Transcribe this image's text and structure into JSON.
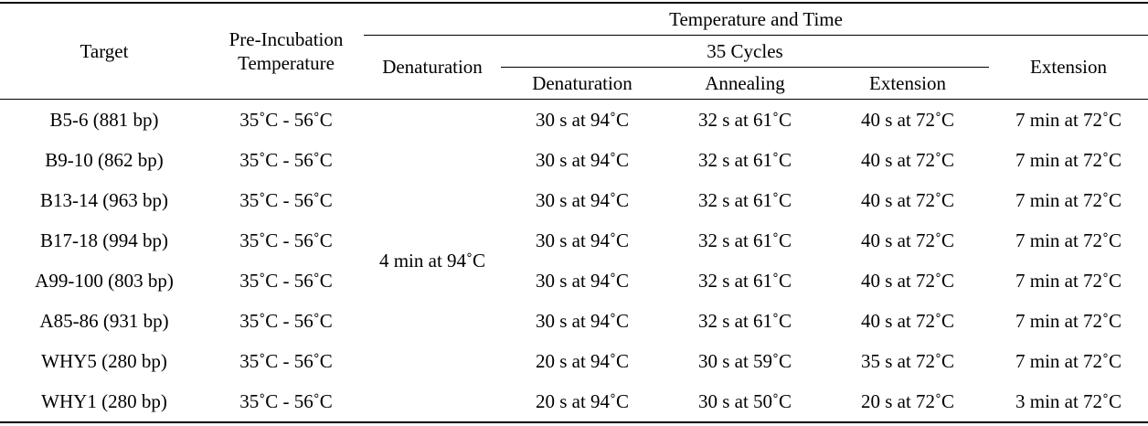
{
  "table": {
    "headers": {
      "target": "Target",
      "pre_incubation": "Pre-Incubation Temperature",
      "temperature_and_time": "Temperature and Time",
      "denaturation_initial": "Denaturation",
      "cycles": "35 Cycles",
      "cycle_denaturation": "Denaturation",
      "cycle_annealing": "Annealing",
      "cycle_extension": "Extension",
      "final_extension": "Extension"
    },
    "initial_denaturation_value": "4 min at 94˚C",
    "rows": [
      {
        "target": "B5-6 (881 bp)",
        "pre": "35˚C - 56˚C",
        "den": "30 s at 94˚C",
        "ann": "32 s at 61˚C",
        "ext": "40 s at 72˚C",
        "final": "7 min at 72˚C"
      },
      {
        "target": "B9-10 (862 bp)",
        "pre": "35˚C - 56˚C",
        "den": "30 s at 94˚C",
        "ann": "32 s at 61˚C",
        "ext": "40 s at 72˚C",
        "final": "7 min at 72˚C"
      },
      {
        "target": "B13-14 (963 bp)",
        "pre": "35˚C - 56˚C",
        "den": "30 s at 94˚C",
        "ann": "32 s at 61˚C",
        "ext": "40 s at 72˚C",
        "final": "7 min at 72˚C"
      },
      {
        "target": "B17-18 (994 bp)",
        "pre": "35˚C - 56˚C",
        "den": "30 s at 94˚C",
        "ann": "32 s at 61˚C",
        "ext": "40 s at 72˚C",
        "final": "7 min at 72˚C"
      },
      {
        "target": "A99-100 (803 bp)",
        "pre": "35˚C - 56˚C",
        "den": "30 s at 94˚C",
        "ann": "32 s at 61˚C",
        "ext": "40 s at 72˚C",
        "final": "7 min at 72˚C"
      },
      {
        "target": "A85-86 (931 bp)",
        "pre": "35˚C - 56˚C",
        "den": "30 s at 94˚C",
        "ann": "32 s at 61˚C",
        "ext": "40 s at 72˚C",
        "final": "7 min at 72˚C"
      },
      {
        "target": "WHY5 (280 bp)",
        "pre": "35˚C - 56˚C",
        "den": "20 s at 94˚C",
        "ann": "30 s at 59˚C",
        "ext": "35 s at 72˚C",
        "final": "7 min at 72˚C"
      },
      {
        "target": "WHY1 (280 bp)",
        "pre": "35˚C - 56˚C",
        "den": "20 s at 94˚C",
        "ann": "30 s at 50˚C",
        "ext": "20 s at 72˚C",
        "final": "3 min at 72˚C"
      }
    ]
  }
}
